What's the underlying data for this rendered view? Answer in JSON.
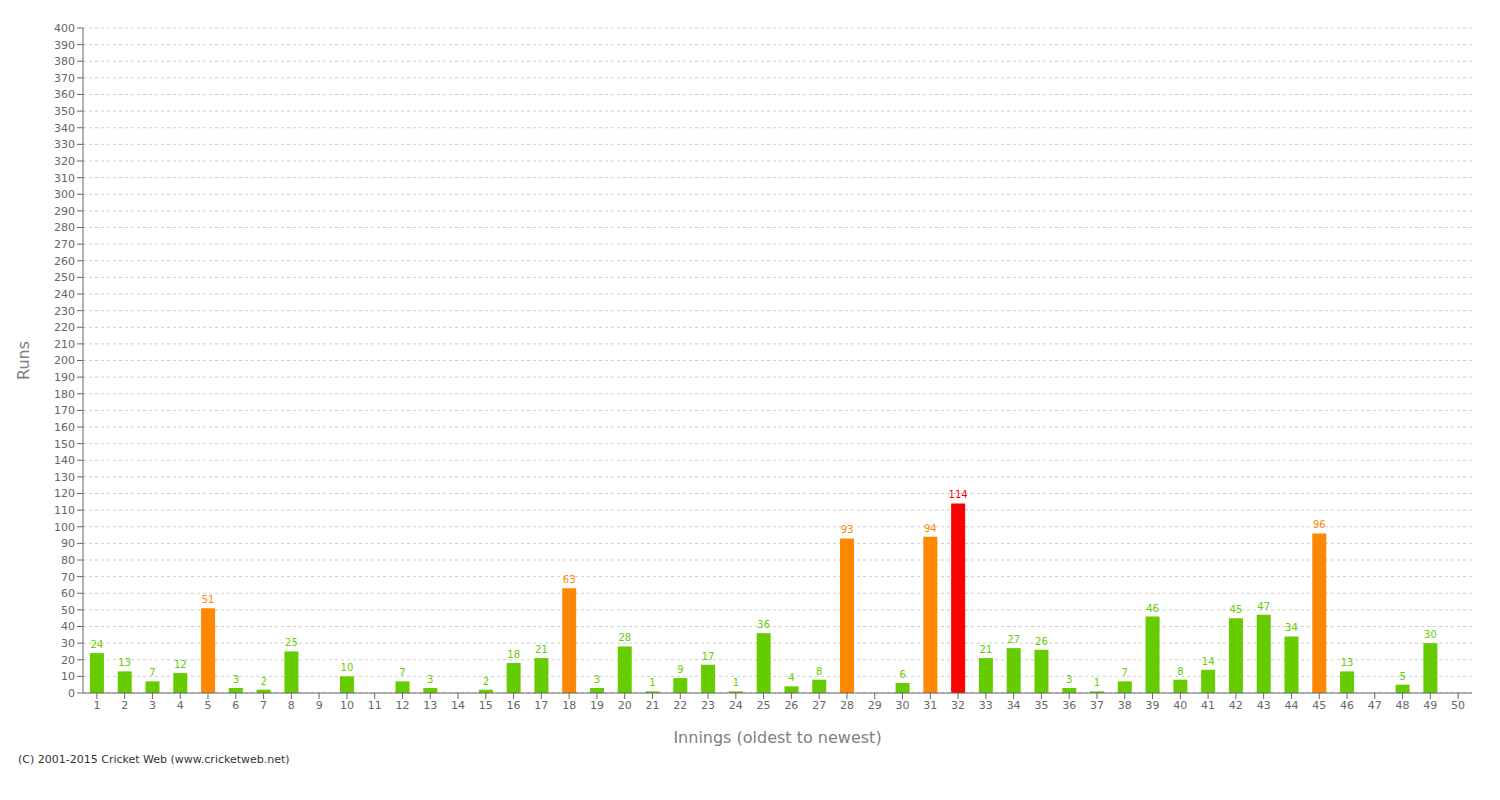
{
  "chart_data": {
    "type": "bar",
    "x_label": "Innings (oldest to newest)",
    "y_label": "Runs",
    "annotations": [
      "(C) 2001-2015 Cricket Web (www.cricketweb.net)"
    ],
    "categories": [
      "1",
      "2",
      "3",
      "4",
      "5",
      "6",
      "7",
      "8",
      "9",
      "10",
      "11",
      "12",
      "13",
      "14",
      "15",
      "16",
      "17",
      "18",
      "19",
      "20",
      "21",
      "22",
      "23",
      "24",
      "25",
      "26",
      "27",
      "28",
      "29",
      "30",
      "31",
      "32",
      "33",
      "34",
      "35",
      "36",
      "37",
      "38",
      "39",
      "40",
      "41",
      "42",
      "43",
      "44",
      "45",
      "46",
      "47",
      "48",
      "49",
      "50"
    ],
    "values": [
      24,
      13,
      7,
      12,
      51,
      3,
      2,
      25,
      0,
      10,
      0,
      7,
      3,
      0,
      2,
      18,
      21,
      63,
      3,
      28,
      1,
      9,
      17,
      1,
      36,
      4,
      8,
      93,
      0,
      6,
      94,
      114,
      21,
      27,
      26,
      3,
      1,
      7,
      46,
      8,
      14,
      45,
      47,
      34,
      96,
      13,
      0,
      5,
      30,
      0
    ],
    "colors": [
      "#66cc00",
      "#66cc00",
      "#66cc00",
      "#66cc00",
      "#ff8800",
      "#66cc00",
      "#66cc00",
      "#66cc00",
      "#66cc00",
      "#66cc00",
      "#66cc00",
      "#66cc00",
      "#66cc00",
      "#66cc00",
      "#66cc00",
      "#66cc00",
      "#66cc00",
      "#ff8800",
      "#66cc00",
      "#66cc00",
      "#66cc00",
      "#66cc00",
      "#66cc00",
      "#66cc00",
      "#66cc00",
      "#66cc00",
      "#66cc00",
      "#ff8800",
      "#66cc00",
      "#66cc00",
      "#ff8800",
      "#ff0000",
      "#66cc00",
      "#66cc00",
      "#66cc00",
      "#66cc00",
      "#66cc00",
      "#66cc00",
      "#66cc00",
      "#66cc00",
      "#66cc00",
      "#66cc00",
      "#66cc00",
      "#66cc00",
      "#ff8800",
      "#66cc00",
      "#66cc00",
      "#66cc00",
      "#66cc00",
      "#66cc00"
    ],
    "ylim": [
      0,
      400
    ],
    "yticks": [
      0,
      10,
      20,
      30,
      40,
      50,
      60,
      70,
      80,
      90,
      100,
      110,
      120,
      130,
      140,
      150,
      160,
      170,
      180,
      190,
      200,
      210,
      220,
      230,
      240,
      250,
      260,
      270,
      280,
      290,
      300,
      310,
      320,
      330,
      340,
      350,
      360,
      370,
      380,
      390,
      400
    ],
    "grid": true,
    "data_labels": true
  }
}
